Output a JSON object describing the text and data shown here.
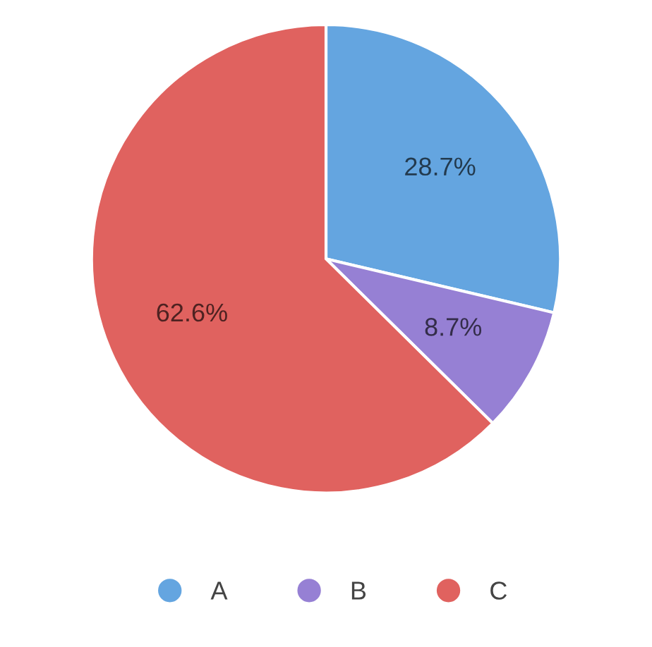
{
  "chart_data": {
    "type": "pie",
    "categories": [
      "A",
      "B",
      "C"
    ],
    "values": [
      28.7,
      8.7,
      62.6
    ],
    "colors": [
      "#64a5e0",
      "#9680d4",
      "#e0625f"
    ],
    "value_labels": [
      "28.7%",
      "8.7%",
      "62.6%"
    ],
    "legend": "bottom"
  }
}
